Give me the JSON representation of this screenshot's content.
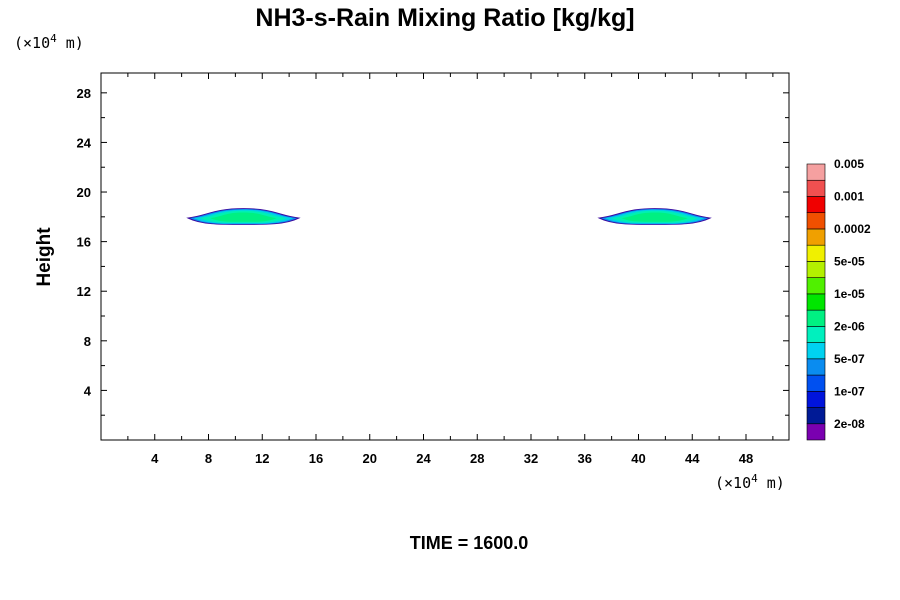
{
  "chart_data": {
    "type": "contour",
    "title": "NH3-s-Rain Mixing Ratio [kg/kg]",
    "ylabel": "Height",
    "x_unit": {
      "prefix": "(×10",
      "exp": "4",
      "suffix": " m)"
    },
    "y_unit": {
      "prefix": "(×10",
      "exp": "4",
      "suffix": " m)"
    },
    "xlim": [
      0,
      51.2
    ],
    "ylim": [
      0,
      29.6
    ],
    "x_ticks": [
      4,
      8,
      12,
      16,
      20,
      24,
      28,
      32,
      36,
      40,
      44,
      48
    ],
    "y_ticks": [
      4,
      8,
      12,
      16,
      20,
      24,
      28
    ],
    "time_label": "TIME = 1600.0",
    "colorbar": {
      "colors": [
        "#7a00b0",
        "#001a96",
        "#0014dc",
        "#0050f0",
        "#0a8cf0",
        "#00d2f0",
        "#00f0be",
        "#00f082",
        "#00e600",
        "#50f000",
        "#b4f000",
        "#f0f000",
        "#f0a000",
        "#f05000",
        "#f00000",
        "#f05050",
        "#f5a0a0"
      ],
      "labels": [
        "2e-08",
        "1e-07",
        "5e-07",
        "2e-06",
        "1e-05",
        "5e-05",
        "0.0002",
        "0.001",
        "0.005"
      ]
    },
    "features": [
      {
        "center_x": 10.6,
        "center_y": 17.9,
        "half_width_x": 4.1,
        "top_half_height": 0.75,
        "bottom_half_height": 0.5,
        "peak_level": "2e-06"
      },
      {
        "center_x": 41.2,
        "center_y": 17.9,
        "half_width_x": 4.1,
        "top_half_height": 0.75,
        "bottom_half_height": 0.5,
        "peak_level": "2e-06"
      }
    ]
  }
}
